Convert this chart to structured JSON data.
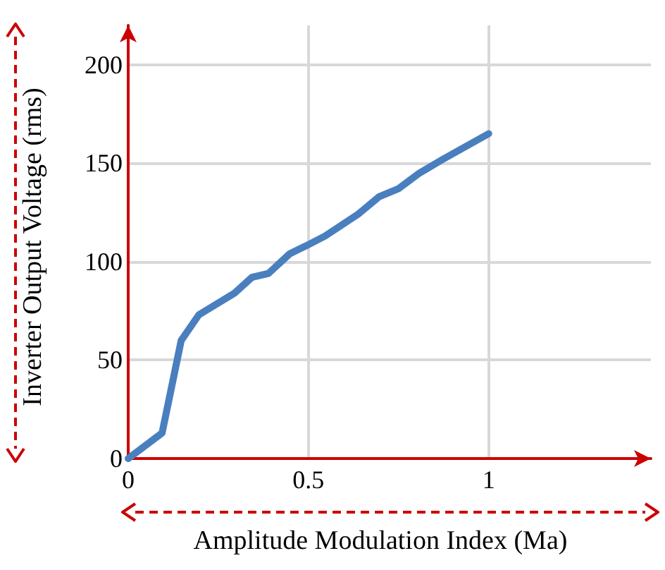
{
  "chart_data": {
    "type": "line",
    "xlabel": "Amplitude Modulation Index (Ma)",
    "ylabel": "Inverter Output Voltage (rms)",
    "x": [
      0,
      0.094,
      0.147,
      0.196,
      0.295,
      0.343,
      0.389,
      0.448,
      0.493,
      0.546,
      0.637,
      0.696,
      0.749,
      0.808,
      0.873,
      1
    ],
    "series": [
      {
        "color": "#4a7fbf",
        "values": [
          0,
          13,
          60,
          73,
          84,
          92,
          94,
          104,
          108,
          113,
          124,
          133,
          137,
          145,
          152,
          165
        ]
      }
    ],
    "xlim": [
      0,
      1.45
    ],
    "xticks": [
      0,
      0.5,
      1
    ],
    "ylim": [
      0,
      220
    ],
    "yticks": [
      0,
      50,
      100,
      150,
      200
    ],
    "grid": true,
    "marker": "none",
    "line_style": "solid"
  }
}
